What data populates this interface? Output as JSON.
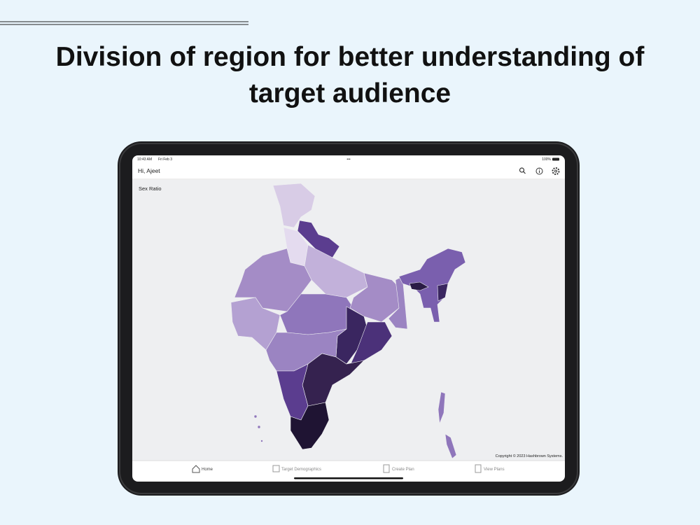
{
  "header": {
    "title": "Division of region for better understanding of target audience"
  },
  "status_bar": {
    "time": "10:43 AM",
    "date": "Fri Feb 3",
    "battery": "100%"
  },
  "app_bar": {
    "greeting": "Hi, Ajeet"
  },
  "map": {
    "label": "Sex Ratio",
    "copyright": "Copyright © 2023 Hashbrown Systems."
  },
  "nav": {
    "items": [
      "Home",
      "Target Demographics",
      "Create Plan",
      "View Plans"
    ]
  }
}
